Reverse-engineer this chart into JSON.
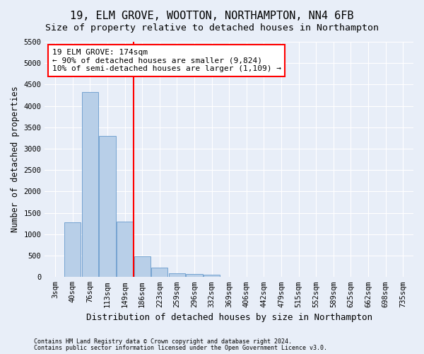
{
  "title": "19, ELM GROVE, WOOTTON, NORTHAMPTON, NN4 6FB",
  "subtitle": "Size of property relative to detached houses in Northampton",
  "xlabel": "Distribution of detached houses by size in Northampton",
  "ylabel": "Number of detached properties",
  "footnote1": "Contains HM Land Registry data © Crown copyright and database right 2024.",
  "footnote2": "Contains public sector information licensed under the Open Government Licence v3.0.",
  "bar_labels": [
    "3sqm",
    "40sqm",
    "76sqm",
    "113sqm",
    "149sqm",
    "186sqm",
    "223sqm",
    "259sqm",
    "296sqm",
    "332sqm",
    "369sqm",
    "406sqm",
    "442sqm",
    "479sqm",
    "515sqm",
    "552sqm",
    "589sqm",
    "625sqm",
    "662sqm",
    "698sqm",
    "735sqm"
  ],
  "bar_values": [
    0,
    1280,
    4330,
    3300,
    1290,
    480,
    215,
    90,
    65,
    50,
    0,
    0,
    0,
    0,
    0,
    0,
    0,
    0,
    0,
    0,
    0
  ],
  "bar_color": "#b8cfe8",
  "bar_edgecolor": "#6699cc",
  "vline_x_idx": 4.5,
  "vline_color": "red",
  "annotation_line1": "19 ELM GROVE: 174sqm",
  "annotation_line2": "← 90% of detached houses are smaller (9,824)",
  "annotation_line3": "10% of semi-detached houses are larger (1,109) →",
  "ylim_max": 5500,
  "yticks": [
    0,
    500,
    1000,
    1500,
    2000,
    2500,
    3000,
    3500,
    4000,
    4500,
    5000,
    5500
  ],
  "background_color": "#e8eef8",
  "grid_color": "#ffffff",
  "title_fontsize": 11,
  "subtitle_fontsize": 9.5,
  "tick_fontsize": 7.5,
  "ylabel_fontsize": 8.5,
  "xlabel_fontsize": 9,
  "annot_fontsize": 8,
  "footnote_fontsize": 6
}
